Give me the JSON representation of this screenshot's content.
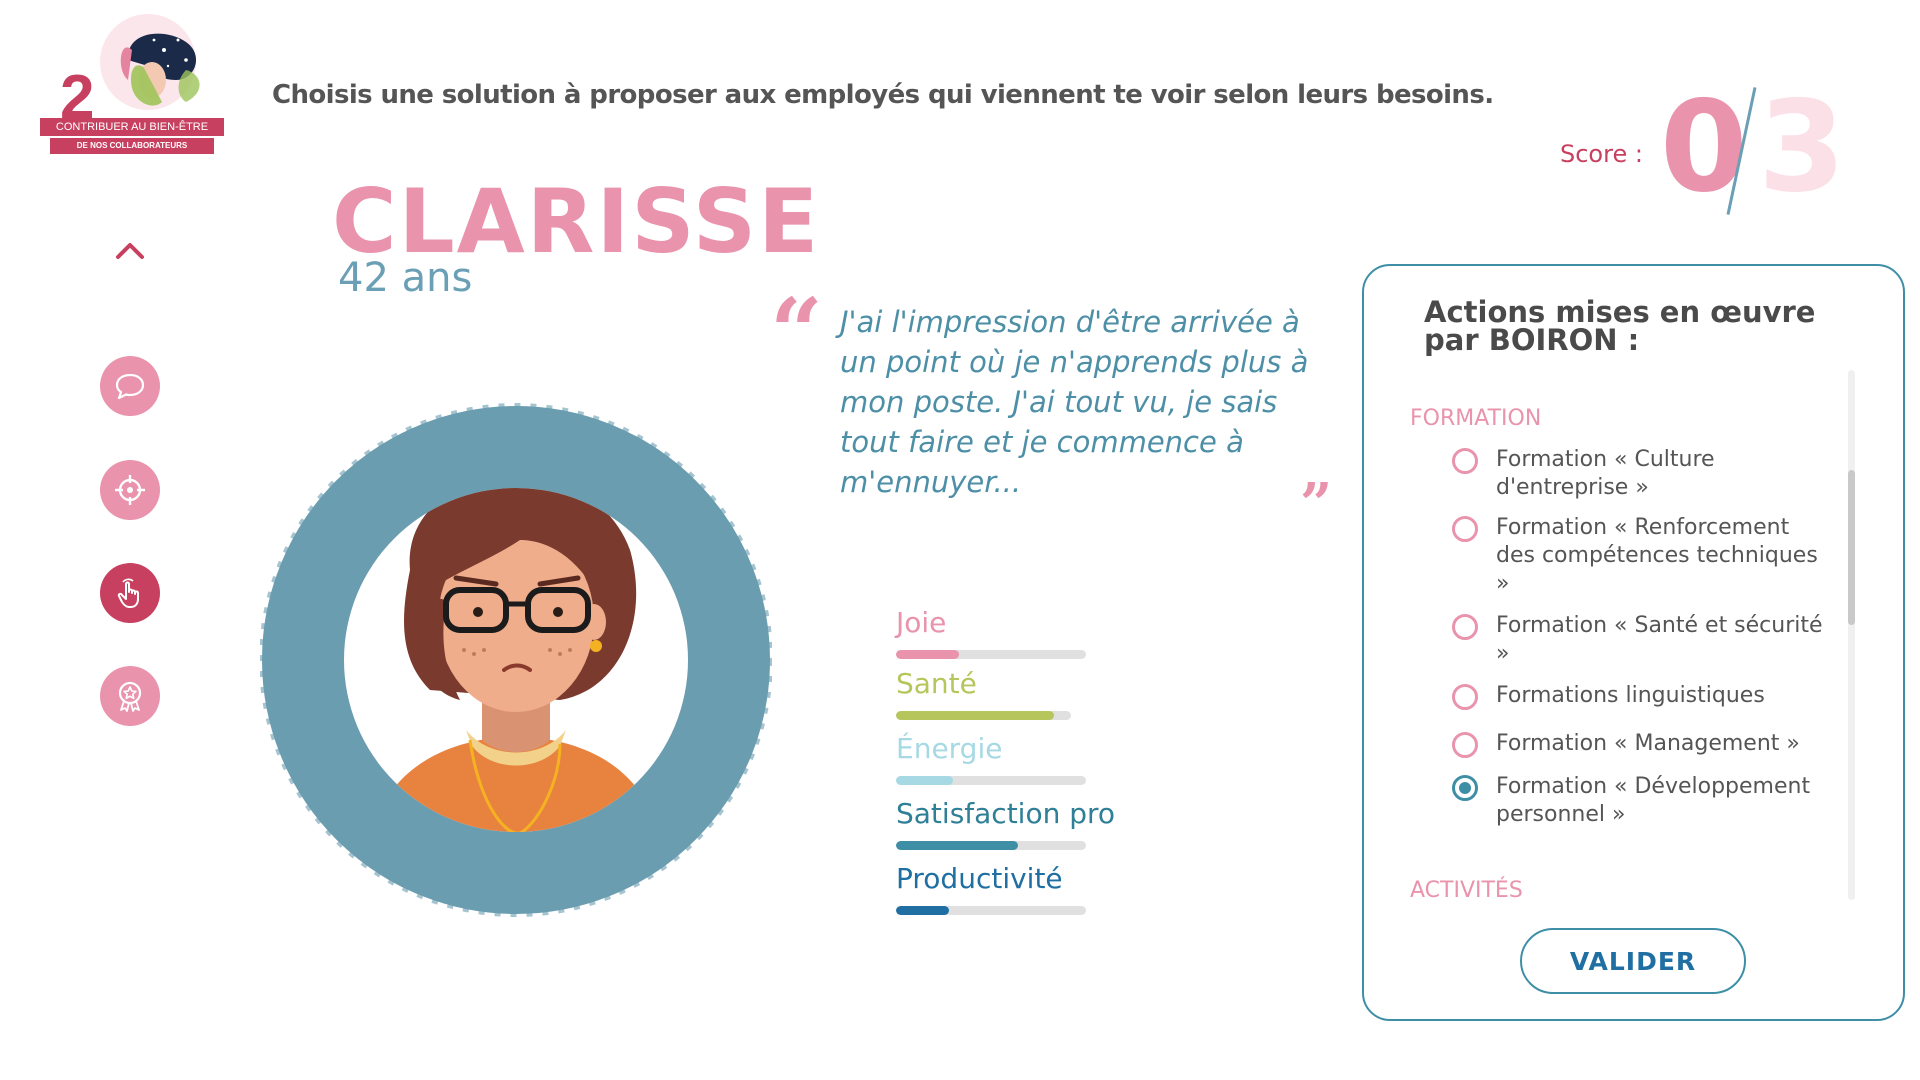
{
  "logo": {
    "number": "2",
    "line1": "CONTRIBUER AU BIEN-ÊTRE",
    "line2": "DE NOS COLLABORATEURS"
  },
  "header": {
    "instruction": "Choisis une solution à proposer aux employés qui viennent te voir selon leurs besoins."
  },
  "score": {
    "label": "Score :",
    "value": "0",
    "total": "3"
  },
  "sidebar": {
    "items": [
      {
        "icon": "chat-bubble-icon",
        "active": false
      },
      {
        "icon": "target-icon",
        "active": false
      },
      {
        "icon": "pointer-hand-icon",
        "active": true
      },
      {
        "icon": "award-ribbon-icon",
        "active": false
      }
    ]
  },
  "character": {
    "name": "CLARISSE",
    "age": "42 ans",
    "quote": "J'ai l'impression d'être arrivée à un point où je n'apprends plus à mon poste. J'ai tout vu, je sais tout faire et je commence à m'ennuyer..."
  },
  "gauges": [
    {
      "label": "Joie",
      "level": 0.33,
      "color": "#e993ad",
      "label_color": "#e993ad",
      "track_len": 190
    },
    {
      "label": "Santé",
      "level": 0.9,
      "color": "#b7c65c",
      "label_color": "#b7c65c",
      "track_len": 175
    },
    {
      "label": "Énergie",
      "level": 0.3,
      "color": "#a6d9e4",
      "label_color": "#a6d9e4",
      "track_len": 190
    },
    {
      "label": "Satisfaction pro",
      "level": 0.64,
      "color": "#3e8fa6",
      "label_color": "#2e7f97",
      "track_len": 190
    },
    {
      "label": "Productivité",
      "level": 0.28,
      "color": "#1f6fa3",
      "label_color": "#1f6fa3",
      "track_len": 190
    }
  ],
  "panel": {
    "title": "Actions mises en œuvre par BOIRON :",
    "section1": "FORMATION",
    "options": [
      {
        "label": "Formation « Culture d'entreprise »",
        "selected": false
      },
      {
        "label": "Formation « Renforcement des compétences techniques »",
        "selected": false
      },
      {
        "label": "Formation « Santé et sécurité »",
        "selected": false
      },
      {
        "label": "Formations linguistiques",
        "selected": false
      },
      {
        "label": "Formation « Management »",
        "selected": false
      },
      {
        "label": "Formation « Développement personnel »",
        "selected": true
      }
    ],
    "section2": "ACTIVITÉS",
    "validate_label": "VALIDER"
  },
  "colors": {
    "pink": "#e993ad",
    "dark_pink": "#c84060",
    "teal": "#3e8fa6",
    "blue": "#1f6fa3"
  }
}
